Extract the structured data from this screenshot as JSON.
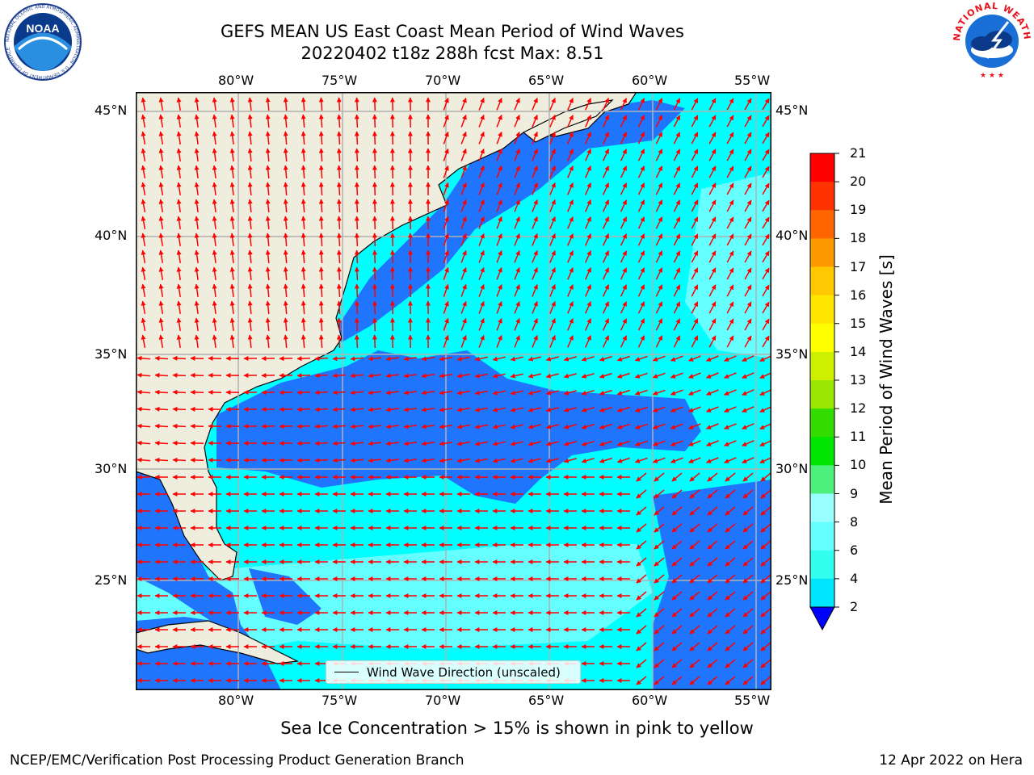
{
  "title_line1": "GEFS MEAN US East Coast Mean Period of Wind Waves",
  "title_line2": "20220402 t18z 288h fcst   Max: 8.51",
  "legend_label": "Wind Wave Direction (unscaled)",
  "footer_note": "Sea Ice Concentration > 15% is shown in pink to yellow",
  "credit_left": "NCEP/EMC/Verification Post Processing Product Generation Branch",
  "credit_right": "12 Apr 2022 on Hera",
  "colorbar": {
    "title": "Mean Period of Wind Waves [s]",
    "ticks": [
      "2",
      "4",
      "6",
      "8",
      "9",
      "10",
      "11",
      "12",
      "13",
      "14",
      "15",
      "16",
      "17",
      "18",
      "19",
      "20",
      "21"
    ],
    "colors": [
      "#1a75ff",
      "#00e5ff",
      "#33ffee",
      "#66ffff",
      "#99ffff",
      "#4cf07a",
      "#00e600",
      "#33dd00",
      "#99e600",
      "#ccf000",
      "#ffff00",
      "#ffe600",
      "#ffc800",
      "#ff9900",
      "#ff6600",
      "#ff3300",
      "#ff0000"
    ],
    "under_color": "#0000ff"
  },
  "map": {
    "lat_labels": [
      "45°N",
      "40°N",
      "35°N",
      "30°N",
      "25°N"
    ],
    "lon_labels": [
      "80°W",
      "75°W",
      "70°W",
      "65°W",
      "60°W",
      "55°W"
    ],
    "land_color": "#efedde",
    "ocean_cyan": "#00ffff",
    "ocean_light": "#66ffff",
    "ocean_blue": "#1f75fe",
    "arrow_color": "#ff0000"
  },
  "logos": {
    "left": "NOAA",
    "left_ring": "NATIONAL OCEANIC AND ATMOSPHERIC ADMINISTRATION · U.S. DEPARTMENT OF COMMERCE",
    "right_ring": "NATIONAL WEATHER SERVICE"
  }
}
